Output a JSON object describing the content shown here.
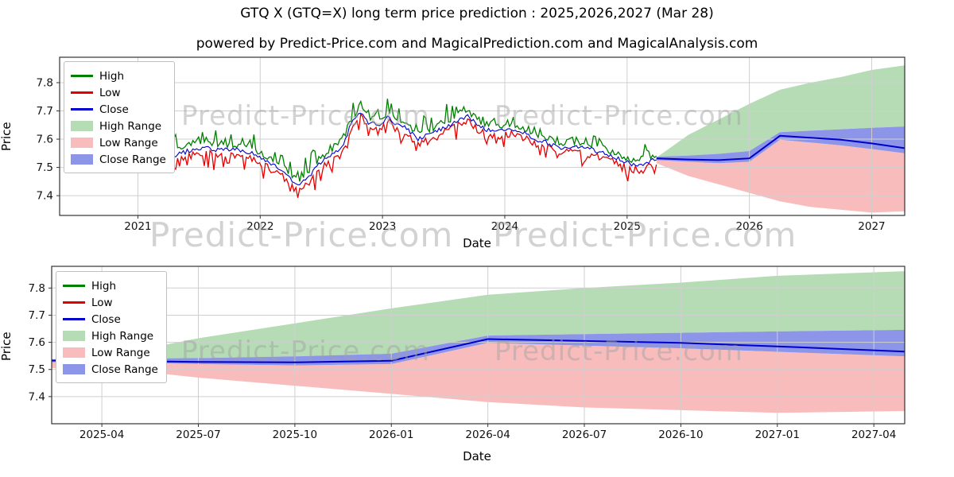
{
  "header": {
    "title": "GTQ X (GTQ=X) long term price prediction : 2025,2026,2027 (Mar 28)",
    "subtitle": "powered by Predict-Price.com and MagicalPrediction.com and MagicalAnalysis.com"
  },
  "watermark": {
    "text": "Predict-Price.com"
  },
  "axes": {
    "x_label": "Date",
    "y_label": "Price"
  },
  "colors": {
    "high": "#008000",
    "low": "#e60000",
    "close": "#0000cd",
    "high_range": "#b5dcb5",
    "low_range": "#f9bcbc",
    "close_range": "#8d95e8",
    "grid": "#cfcfcf",
    "spine": "#333333"
  },
  "legend": {
    "items": [
      {
        "label": "High",
        "type": "line",
        "color": "#008000"
      },
      {
        "label": "Low",
        "type": "line",
        "color": "#e60000"
      },
      {
        "label": "Close",
        "type": "line",
        "color": "#0000cd"
      },
      {
        "label": "High Range",
        "type": "patch",
        "color": "#b5dcb5"
      },
      {
        "label": "Low Range",
        "type": "patch",
        "color": "#f9bcbc"
      },
      {
        "label": "Close Range",
        "type": "patch",
        "color": "#8d95e8"
      }
    ]
  },
  "chart_data": [
    {
      "id": "top",
      "type": "line",
      "xlabel": "Date",
      "ylabel": "Price",
      "xlim": [
        2020.36,
        2027.27
      ],
      "ylim": [
        7.33,
        7.89
      ],
      "xticks": [
        2021,
        2022,
        2023,
        2024,
        2025,
        2026,
        2027
      ],
      "xtick_labels": [
        "2021",
        "2022",
        "2023",
        "2024",
        "2025",
        "2026",
        "2027"
      ],
      "yticks": [
        7.4,
        7.5,
        7.6,
        7.7,
        7.8
      ],
      "ytick_labels": [
        "7.4",
        "7.5",
        "7.6",
        "7.7",
        "7.8"
      ],
      "history": {
        "t": [
          2021.2,
          2021.3,
          2021.45,
          2021.55,
          2021.65,
          2021.75,
          2021.85,
          2021.95,
          2022.05,
          2022.15,
          2022.25,
          2022.33,
          2022.4,
          2022.5,
          2022.6,
          2022.67,
          2022.75,
          2022.82,
          2022.88,
          2022.95,
          2023.0,
          2023.05,
          2023.12,
          2023.2,
          2023.28,
          2023.35,
          2023.45,
          2023.55,
          2023.62,
          2023.7,
          2023.78,
          2023.85,
          2023.95,
          2024.05,
          2024.15,
          2024.25,
          2024.33,
          2024.45,
          2024.55,
          2024.65,
          2024.75,
          2024.85,
          2024.95,
          2025.05,
          2025.15,
          2025.24
        ],
        "close": [
          7.515,
          7.54,
          7.565,
          7.57,
          7.56,
          7.565,
          7.56,
          7.55,
          7.52,
          7.5,
          7.46,
          7.44,
          7.47,
          7.52,
          7.55,
          7.575,
          7.66,
          7.7,
          7.66,
          7.65,
          7.66,
          7.68,
          7.65,
          7.64,
          7.6,
          7.61,
          7.63,
          7.65,
          7.67,
          7.68,
          7.65,
          7.635,
          7.625,
          7.64,
          7.625,
          7.6,
          7.59,
          7.57,
          7.575,
          7.57,
          7.56,
          7.545,
          7.525,
          7.51,
          7.515,
          7.53
        ]
      },
      "forecast": {
        "t": [
          2025.24,
          2025.5,
          2025.75,
          2026.0,
          2026.25,
          2026.5,
          2026.75,
          2027.0,
          2027.27
        ],
        "high_upper": [
          7.535,
          7.615,
          7.67,
          7.725,
          7.775,
          7.8,
          7.82,
          7.845,
          7.861
        ],
        "close_upper": [
          7.538,
          7.542,
          7.548,
          7.558,
          7.625,
          7.63,
          7.635,
          7.64,
          7.645
        ],
        "close": [
          7.532,
          7.528,
          7.526,
          7.532,
          7.612,
          7.605,
          7.598,
          7.585,
          7.568
        ],
        "close_lower": [
          7.526,
          7.52,
          7.515,
          7.52,
          7.598,
          7.588,
          7.578,
          7.565,
          7.55
        ],
        "low_lower": [
          7.515,
          7.47,
          7.44,
          7.41,
          7.38,
          7.36,
          7.35,
          7.34,
          7.345
        ]
      }
    },
    {
      "id": "bottom",
      "type": "area",
      "xlabel": "Date",
      "ylabel": "Price",
      "xlim": [
        2025.12,
        2027.33
      ],
      "ylim": [
        7.3,
        7.88
      ],
      "xticks": [
        2025.25,
        2025.5,
        2025.75,
        2026.0,
        2026.25,
        2026.5,
        2026.75,
        2027.0,
        2027.25
      ],
      "xtick_labels": [
        "2025-04",
        "2025-07",
        "2025-10",
        "2026-01",
        "2026-04",
        "2026-07",
        "2026-10",
        "2027-01",
        "2027-04"
      ],
      "yticks": [
        7.4,
        7.5,
        7.6,
        7.7,
        7.8
      ],
      "ytick_labels": [
        "7.4",
        "7.5",
        "7.6",
        "7.7",
        "7.8"
      ],
      "forecast": {
        "t": [
          2025.12,
          2025.25,
          2025.5,
          2025.75,
          2026.0,
          2026.25,
          2026.5,
          2026.75,
          2027.0,
          2027.33
        ],
        "high_upper": [
          7.538,
          7.545,
          7.615,
          7.67,
          7.725,
          7.775,
          7.8,
          7.82,
          7.845,
          7.862
        ],
        "close_upper": [
          7.537,
          7.539,
          7.542,
          7.548,
          7.558,
          7.625,
          7.63,
          7.635,
          7.64,
          7.646
        ],
        "close": [
          7.533,
          7.532,
          7.528,
          7.526,
          7.532,
          7.612,
          7.605,
          7.598,
          7.585,
          7.566
        ],
        "close_lower": [
          7.527,
          7.526,
          7.52,
          7.515,
          7.52,
          7.598,
          7.588,
          7.578,
          7.565,
          7.548
        ],
        "low_lower": [
          7.505,
          7.508,
          7.47,
          7.44,
          7.41,
          7.38,
          7.36,
          7.35,
          7.34,
          7.347
        ]
      }
    }
  ]
}
